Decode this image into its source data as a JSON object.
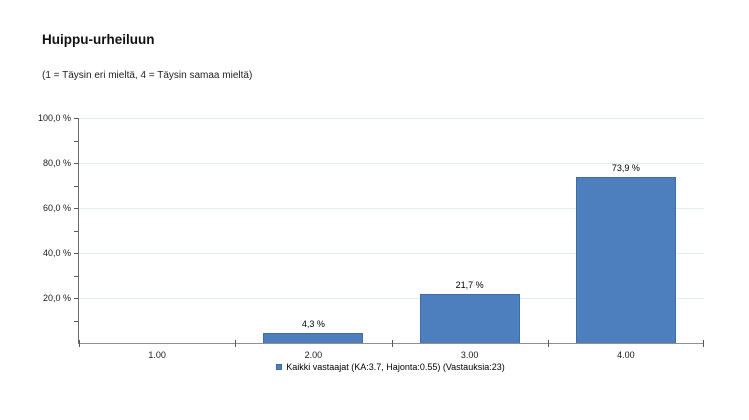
{
  "header": {
    "title": "Huippu-urheiluun",
    "subtitle": "(1 = Täysin eri mieltä, 4 = Täysin samaa mieltä)"
  },
  "chart_data": {
    "type": "bar",
    "title": "Huippu-urheiluun",
    "subtitle": "(1 = Täysin eri mieltä, 4 = Täysin samaa mieltä)",
    "categories": [
      "1.00",
      "2.00",
      "3.00",
      "4.00"
    ],
    "values": [
      0,
      4.3,
      21.7,
      73.9
    ],
    "value_labels": [
      "",
      "4,3 %",
      "21,7 %",
      "73,9 %"
    ],
    "ytick_labels": [
      "20,0 %",
      "40,0 %",
      "60,0 %",
      "80,0 %",
      "100,0 %"
    ],
    "ytick_values": [
      20,
      40,
      60,
      80,
      100
    ],
    "minor_tick_step": 10,
    "ylim": [
      0,
      100
    ],
    "grid": true,
    "legend": [
      "Kaikki vastaajat (KA:3.7, Hajonta:0.55) (Vastauksia:23)"
    ],
    "legend_position": "bottom-center",
    "colors": {
      "bar_fill": "#4d7ebd",
      "bar_border": "#3f6ca3",
      "gridline": "#e2eaf4",
      "axis": "#8f8f8f",
      "tick": "#595959",
      "text": "#000000"
    }
  }
}
